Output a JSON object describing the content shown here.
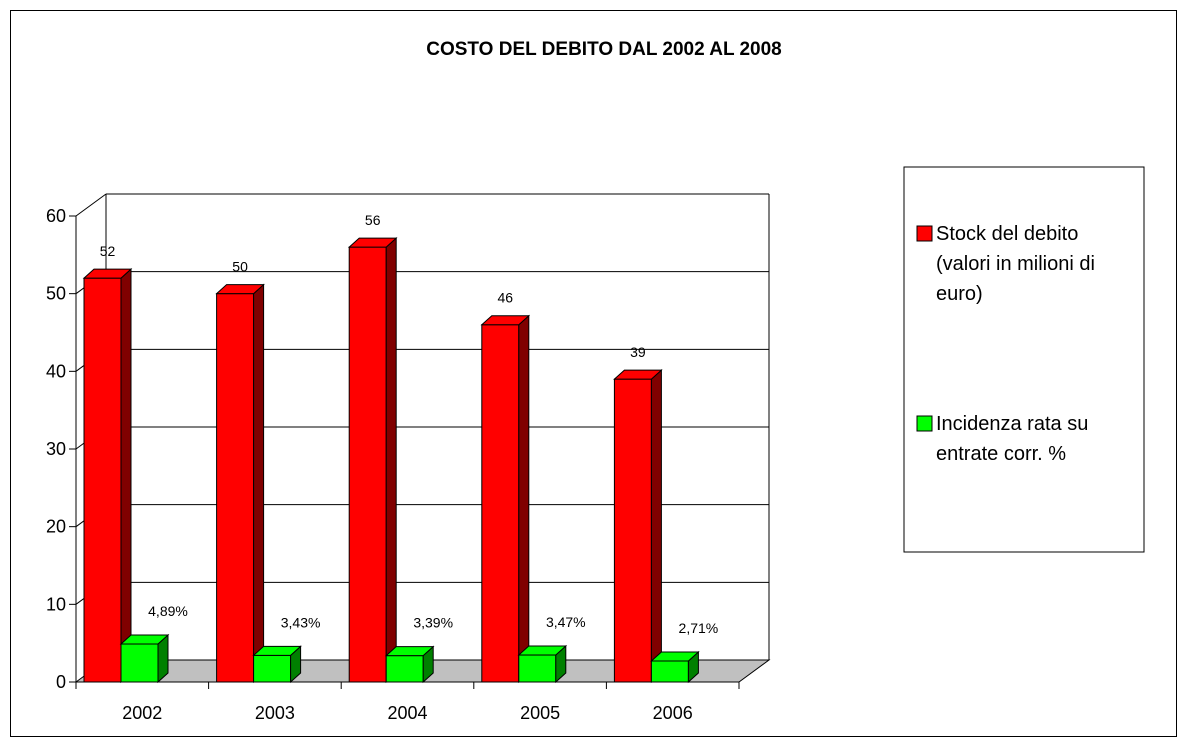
{
  "chart_data": {
    "type": "bar",
    "title": "COSTO DEL DEBITO DAL 2002 AL 2008",
    "categories": [
      "2002",
      "2003",
      "2004",
      "2005",
      "2006"
    ],
    "series": [
      {
        "name": "Stock del debito (valori in milioni di euro)",
        "legend_lines": [
          "Stock del debito",
          "(valori in milioni di",
          "euro)"
        ],
        "values": [
          52,
          50,
          56,
          46,
          39
        ],
        "labels": [
          "52",
          "50",
          "56",
          "46",
          "39"
        ],
        "color": "#ff0000",
        "side_color": "#800000"
      },
      {
        "name": "Incidenza rata su entrate corr. %",
        "legend_lines": [
          "Incidenza rata su",
          "entrate corr.  %"
        ],
        "values": [
          4.89,
          3.43,
          3.39,
          3.47,
          2.71
        ],
        "labels": [
          "4,89%",
          "3,43%",
          "3,39%",
          "3,47%",
          "2,71%"
        ],
        "color": "#00ff00",
        "side_color": "#008000"
      }
    ],
    "yticks": [
      0,
      10,
      20,
      30,
      40,
      50,
      60
    ],
    "ylim": [
      0,
      60
    ],
    "grid": true,
    "legend_position": "right",
    "style": "3d-bar",
    "wall_color": "#c0c0c0"
  }
}
